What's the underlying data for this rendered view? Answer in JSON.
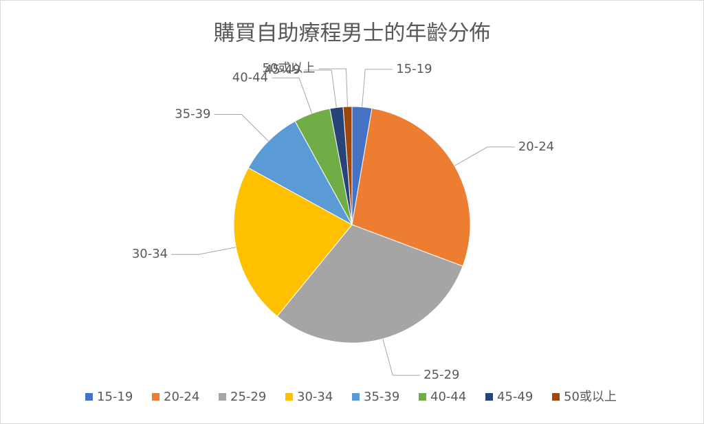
{
  "chart_data": {
    "type": "pie",
    "title": "購買自助療程男士的年齡分佈",
    "categories": [
      "15-19",
      "20-24",
      "25-29",
      "30-34",
      "35-39",
      "40-44",
      "45-49",
      "50或以上"
    ],
    "values": [
      2.7,
      28,
      30.2,
      22.1,
      9,
      5,
      1.8,
      1.2
    ],
    "colors": [
      "#4472c4",
      "#ed7d31",
      "#a5a5a5",
      "#ffc000",
      "#5b9bd5",
      "#70ad47",
      "#264478",
      "#9e480e"
    ],
    "legend": "bottom"
  }
}
